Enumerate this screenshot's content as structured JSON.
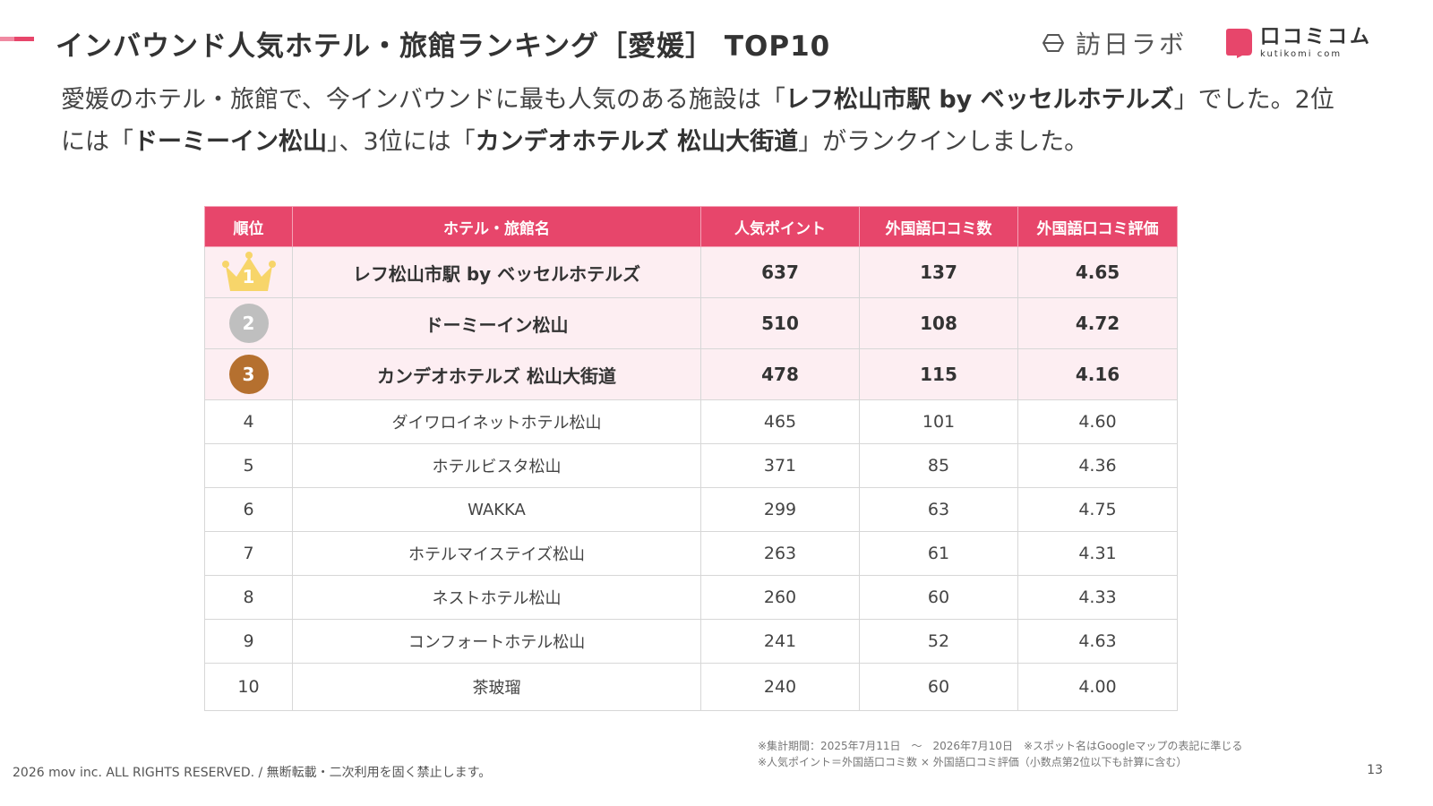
{
  "header": {
    "title": "インバウンド人気ホテル・旅館ランキング［愛媛］ TOP10",
    "brand_primary": "訪日ラボ",
    "brand_secondary_jp": "口コミコム",
    "brand_secondary_en": "kutikomi com"
  },
  "lead": {
    "part1": "愛媛のホテル・旅館で、今インバウンドに最も人気のある施設は「",
    "hotel1": "レフ松山市駅 by ベッセルホテルズ",
    "part2": "」でした。2位には「",
    "hotel2": "ドーミーイン松山",
    "part3": "」、3位には「",
    "hotel3": "カンデオホテルズ 松山大街道",
    "part4": "」がランクインしました。"
  },
  "table": {
    "headers": {
      "rank": "順位",
      "name": "ホテル・旅館名",
      "points": "人気ポイント",
      "reviews": "外国語口コミ数",
      "rating": "外国語口コミ評価"
    },
    "rows": [
      {
        "rank": "1",
        "name": "レフ松山市駅 by ベッセルホテルズ",
        "points": "637",
        "reviews": "137",
        "rating": "4.65"
      },
      {
        "rank": "2",
        "name": "ドーミーイン松山",
        "points": "510",
        "reviews": "108",
        "rating": "4.72"
      },
      {
        "rank": "3",
        "name": "カンデオホテルズ 松山大街道",
        "points": "478",
        "reviews": "115",
        "rating": "4.16"
      },
      {
        "rank": "4",
        "name": "ダイワロイネットホテル松山",
        "points": "465",
        "reviews": "101",
        "rating": "4.60"
      },
      {
        "rank": "5",
        "name": "ホテルビスタ松山",
        "points": "371",
        "reviews": "85",
        "rating": "4.36"
      },
      {
        "rank": "6",
        "name": "WAKKA",
        "points": "299",
        "reviews": "63",
        "rating": "4.75"
      },
      {
        "rank": "7",
        "name": "ホテルマイステイズ松山",
        "points": "263",
        "reviews": "61",
        "rating": "4.31"
      },
      {
        "rank": "8",
        "name": "ネストホテル松山",
        "points": "260",
        "reviews": "60",
        "rating": "4.33"
      },
      {
        "rank": "9",
        "name": "コンフォートホテル松山",
        "points": "241",
        "reviews": "52",
        "rating": "4.63"
      },
      {
        "rank": "10",
        "name": "茶玻瑠",
        "points": "240",
        "reviews": "60",
        "rating": "4.00"
      }
    ]
  },
  "notes": {
    "line1": "※集計期間：2025年7月11日　〜　2026年7月10日　※スポット名はGoogleマップの表記に準じる",
    "line2": "※人気ポイント＝外国語口コミ数 × 外国語口コミ評価（小数点第2位以下も計算に含む）"
  },
  "footer": {
    "copyright": "2026 mov inc. ALL RIGHTS RESERVED. / 無断転載・二次利用を固く禁止します。",
    "page_number": "13"
  },
  "colors": {
    "accent": "#e7466b",
    "top3_row_bg": "#fdeef2",
    "gold": "#f7d56a",
    "silver": "#bfbfbf",
    "bronze": "#b5702f"
  },
  "icons": {
    "rank1": "crown-icon",
    "rank2": "silver-medal-icon",
    "rank3": "bronze-medal-icon",
    "brand1": "houmon-lab-logo-icon",
    "brand2": "kuchikomi-com-logo-icon"
  }
}
